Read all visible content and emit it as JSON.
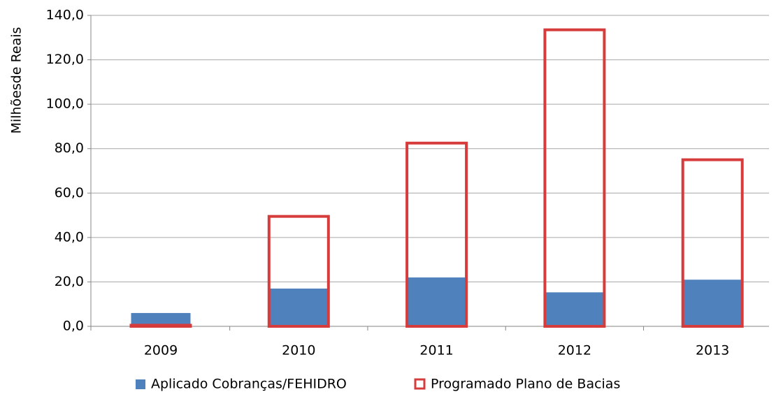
{
  "chart_data": {
    "type": "bar",
    "overlap": true,
    "y_label": "Milhõesde Reais",
    "categories": [
      "2009",
      "2010",
      "2011",
      "2012",
      "2013"
    ],
    "series": [
      {
        "name": "Aplicado Cobranças/FEHIDRO",
        "color": "#4f81bd",
        "style": "filled",
        "values": [
          6.0,
          17.0,
          22.0,
          15.3,
          21.0
        ]
      },
      {
        "name": "Programado Plano de Bacias",
        "color": "#d63c3c",
        "style": "outline",
        "values": [
          0.5,
          49.5,
          82.5,
          133.5,
          75.0
        ]
      }
    ],
    "ylim": [
      0,
      140
    ],
    "yticks": [
      {
        "value": 0,
        "label": "0,0"
      },
      {
        "value": 20,
        "label": "20,0"
      },
      {
        "value": 40,
        "label": "40,0"
      },
      {
        "value": 60,
        "label": "60,0"
      },
      {
        "value": 80,
        "label": "80,0"
      },
      {
        "value": 100,
        "label": "100,0"
      },
      {
        "value": 120,
        "label": "120,0"
      },
      {
        "value": 140,
        "label": "140,0"
      }
    ],
    "grid": true,
    "legend": "bottom"
  }
}
